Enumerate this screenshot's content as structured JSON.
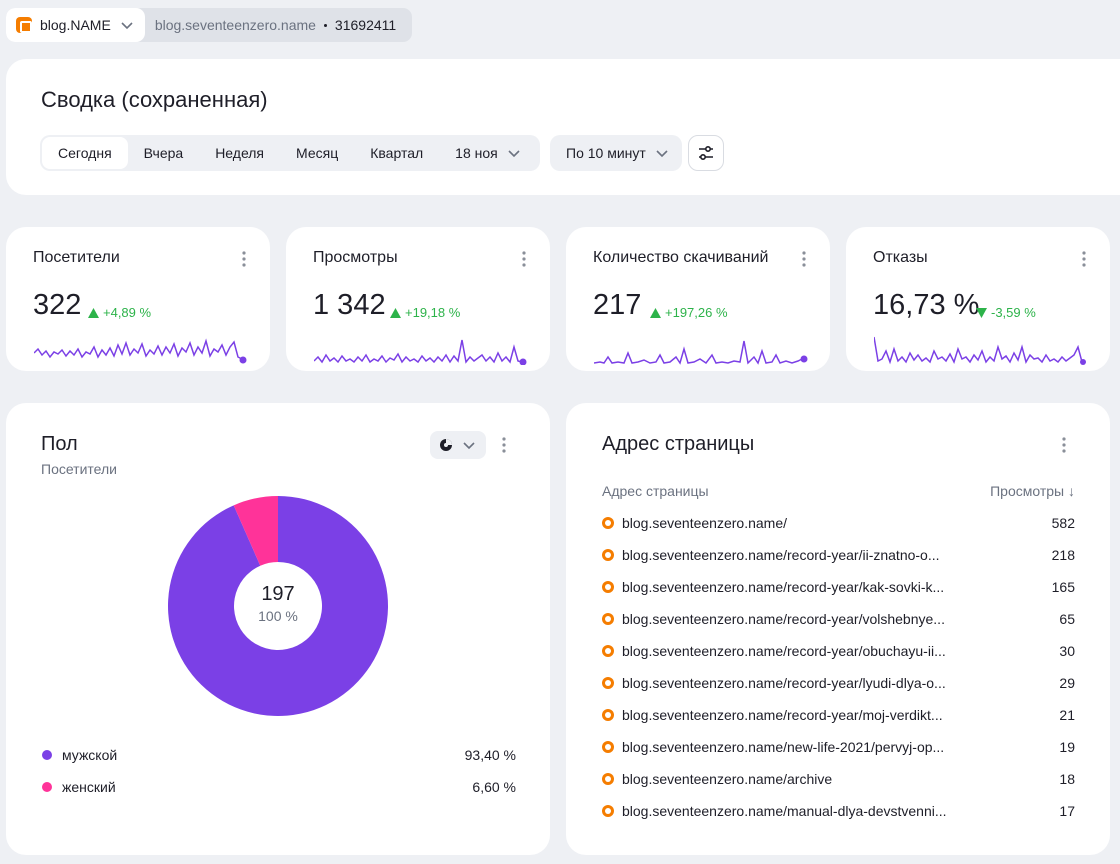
{
  "counter": {
    "name": "blog.NAME",
    "site": "blog.seventeenzero.name",
    "id": "31692411"
  },
  "summary": {
    "title": "Сводка (сохраненная)",
    "periods": [
      "Сегодня",
      "Вчера",
      "Неделя",
      "Месяц",
      "Квартал"
    ],
    "date": "18 ноя",
    "grouping": "По 10 минут"
  },
  "metrics": [
    {
      "title": "Посетители",
      "value": "322",
      "delta": "+4,89 %",
      "trend": "up"
    },
    {
      "title": "Просмотры",
      "value": "1 342",
      "delta": "+19,18 %",
      "trend": "up"
    },
    {
      "title": "Количество скачиваний",
      "value": "217",
      "delta": "+197,26 %",
      "trend": "up"
    },
    {
      "title": "Отказы",
      "value": "16,73 %",
      "delta": "-3,59 %",
      "trend": "down"
    }
  ],
  "gender": {
    "title": "Пол",
    "subtitle": "Посетители",
    "center_value": "197",
    "center_pct": "100 %",
    "legend": [
      {
        "label": "мужской",
        "value": "93,40 %",
        "color": "#7b40e6"
      },
      {
        "label": "женский",
        "value": "6,60 %",
        "color": "#ff3399"
      }
    ]
  },
  "chart_data": {
    "type": "pie",
    "categories": [
      "мужской",
      "женский"
    ],
    "values": [
      93.4,
      6.6
    ],
    "colors": [
      "#7b40e6",
      "#ff3399"
    ],
    "title": "Пол"
  },
  "pages": {
    "title": "Адрес страницы",
    "col_url": "Адрес страницы",
    "col_views": "Просмотры ↓",
    "rows": [
      {
        "url": "blog.seventeenzero.name/",
        "views": "582"
      },
      {
        "url": "blog.seventeenzero.name/record-year/ii-znatno-o...",
        "views": "218"
      },
      {
        "url": "blog.seventeenzero.name/record-year/kak-sovki-k...",
        "views": "165"
      },
      {
        "url": "blog.seventeenzero.name/record-year/volshebnye...",
        "views": "65"
      },
      {
        "url": "blog.seventeenzero.name/record-year/obuchayu-ii...",
        "views": "30"
      },
      {
        "url": "blog.seventeenzero.name/record-year/lyudi-dlya-o...",
        "views": "29"
      },
      {
        "url": "blog.seventeenzero.name/record-year/moj-verdikt...",
        "views": "21"
      },
      {
        "url": "blog.seventeenzero.name/new-life-2021/pervyj-op...",
        "views": "19"
      },
      {
        "url": "blog.seventeenzero.name/archive",
        "views": "18"
      },
      {
        "url": "blog.seventeenzero.name/manual-dlya-devstvenni...",
        "views": "17"
      }
    ]
  },
  "colors": {
    "accent": "#7b40e6",
    "positive": "#2db34a",
    "female": "#ff3399"
  }
}
